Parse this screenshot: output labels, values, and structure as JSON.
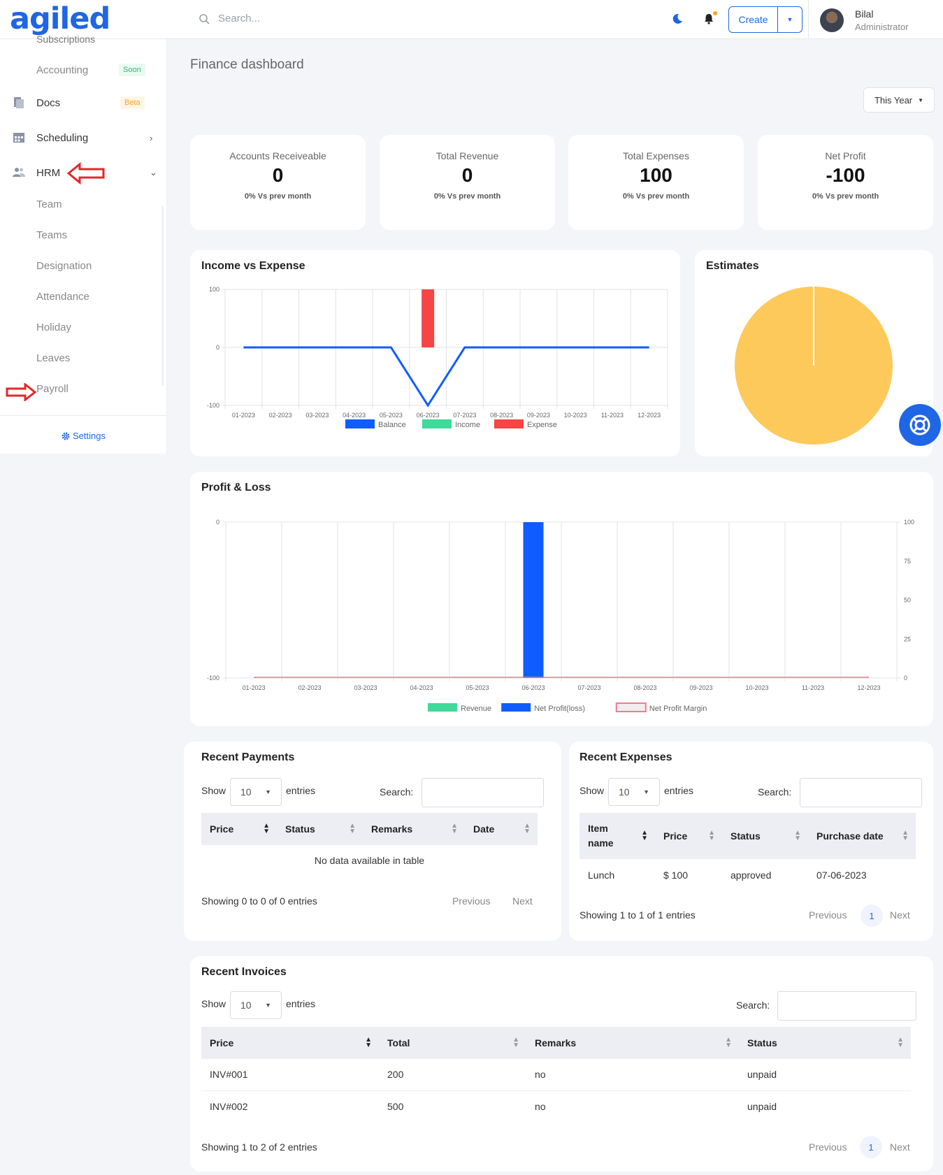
{
  "topbar": {
    "logo": "agiled",
    "search_placeholder": "Search...",
    "create_label": "Create",
    "user_name": "Bilal",
    "user_role": "Administrator"
  },
  "sidebar": {
    "cut_item": "Subscriptions",
    "items": [
      {
        "label": "Accounting",
        "badge": "Soon"
      },
      {
        "label": "Docs",
        "badge": "Beta"
      },
      {
        "label": "Scheduling"
      },
      {
        "label": "HRM"
      },
      {
        "label": "Team"
      },
      {
        "label": "Teams"
      },
      {
        "label": "Designation"
      },
      {
        "label": "Attendance"
      },
      {
        "label": "Holiday"
      },
      {
        "label": "Leaves"
      },
      {
        "label": "Payroll"
      }
    ],
    "settings_label": "Settings"
  },
  "page": {
    "title": "Finance dashboard",
    "period": "This Year"
  },
  "kpis": [
    {
      "label": "Accounts Receiveable",
      "value": "0",
      "sub": "0% Vs prev month"
    },
    {
      "label": "Total Revenue",
      "value": "0",
      "sub": "0% Vs prev month"
    },
    {
      "label": "Total Expenses",
      "value": "100",
      "sub": "0% Vs prev month"
    },
    {
      "label": "Net Profit",
      "value": "-100",
      "sub": "0% Vs prev month"
    }
  ],
  "chart_data": [
    {
      "title": "Income vs Expense",
      "type": "line",
      "categories": [
        "01-2023",
        "02-2023",
        "03-2023",
        "04-2023",
        "05-2023",
        "06-2023",
        "07-2023",
        "08-2023",
        "09-2023",
        "10-2023",
        "11-2023",
        "12-2023"
      ],
      "y_ticks": [
        "100",
        "0",
        "-100"
      ],
      "ylim": [
        -100,
        100
      ],
      "series": [
        {
          "name": "Balance",
          "type": "line",
          "color": "#0f5cff",
          "values": [
            0,
            0,
            0,
            0,
            0,
            -100,
            0,
            0,
            0,
            0,
            0,
            0
          ]
        },
        {
          "name": "Income",
          "type": "bar",
          "color": "#3fd99a",
          "values": [
            0,
            0,
            0,
            0,
            0,
            0,
            0,
            0,
            0,
            0,
            0,
            0
          ]
        },
        {
          "name": "Expense",
          "type": "bar",
          "color": "#f54545",
          "values": [
            0,
            0,
            0,
            0,
            0,
            100,
            0,
            0,
            0,
            0,
            0,
            0
          ]
        }
      ],
      "grid": true,
      "legend": "bottom"
    },
    {
      "title": "Estimates",
      "type": "pie",
      "series": [
        {
          "values": [
            100
          ],
          "colors": [
            "#fdc95a"
          ]
        }
      ]
    },
    {
      "title": "Profit & Loss",
      "type": "bar",
      "categories": [
        "01-2023",
        "02-2023",
        "03-2023",
        "04-2023",
        "05-2023",
        "06-2023",
        "07-2023",
        "08-2023",
        "09-2023",
        "10-2023",
        "11-2023",
        "12-2023"
      ],
      "y_left_ticks": [
        "0",
        "-100"
      ],
      "y_right_ticks": [
        "100",
        "75",
        "50",
        "25",
        "0"
      ],
      "ylim_left": [
        -100,
        0
      ],
      "ylim_right": [
        0,
        100
      ],
      "series": [
        {
          "name": "Revenue",
          "type": "bar",
          "axis": "left",
          "color": "#3fd99a",
          "values": [
            0,
            0,
            0,
            0,
            0,
            0,
            0,
            0,
            0,
            0,
            0,
            0
          ]
        },
        {
          "name": "Net Profit(loss)",
          "type": "bar",
          "axis": "left",
          "color": "#0f5cff",
          "values": [
            0,
            0,
            0,
            0,
            0,
            -100,
            0,
            0,
            0,
            0,
            0,
            0
          ]
        },
        {
          "name": "Net Profit Margin",
          "type": "line",
          "axis": "right",
          "color": "#f37a8c",
          "values": [
            0,
            0,
            0,
            0,
            0,
            0,
            0,
            0,
            0,
            0,
            0,
            0
          ]
        }
      ],
      "grid": true,
      "legend": "bottom"
    }
  ],
  "recent_payments": {
    "title": "Recent Payments",
    "show": "Show",
    "page_size": "10",
    "entries": "entries",
    "search": "Search:",
    "columns": [
      "Price",
      "Status",
      "Remarks",
      "Date"
    ],
    "empty": "No data available in table",
    "info": "Showing 0 to 0 of 0 entries",
    "prev": "Previous",
    "next": "Next"
  },
  "recent_expenses": {
    "title": "Recent Expenses",
    "show": "Show",
    "page_size": "10",
    "entries": "entries",
    "search": "Search:",
    "columns": [
      "Item name",
      "Price",
      "Status",
      "Purchase date"
    ],
    "rows": [
      [
        "Lunch",
        "$ 100",
        "approved",
        "07-06-2023"
      ]
    ],
    "info": "Showing 1 to 1 of 1 entries",
    "prev": "Previous",
    "page": "1",
    "next": "Next"
  },
  "recent_invoices": {
    "title": "Recent Invoices",
    "show": "Show",
    "page_size": "10",
    "entries": "entries",
    "search": "Search:",
    "columns": [
      "Price",
      "Total",
      "Remarks",
      "Status"
    ],
    "rows": [
      [
        "INV#001",
        "200",
        "no",
        "unpaid"
      ],
      [
        "INV#002",
        "500",
        "no",
        "unpaid"
      ]
    ],
    "info": "Showing 1 to 2 of 2 entries",
    "prev": "Previous",
    "page": "1",
    "next": "Next"
  }
}
